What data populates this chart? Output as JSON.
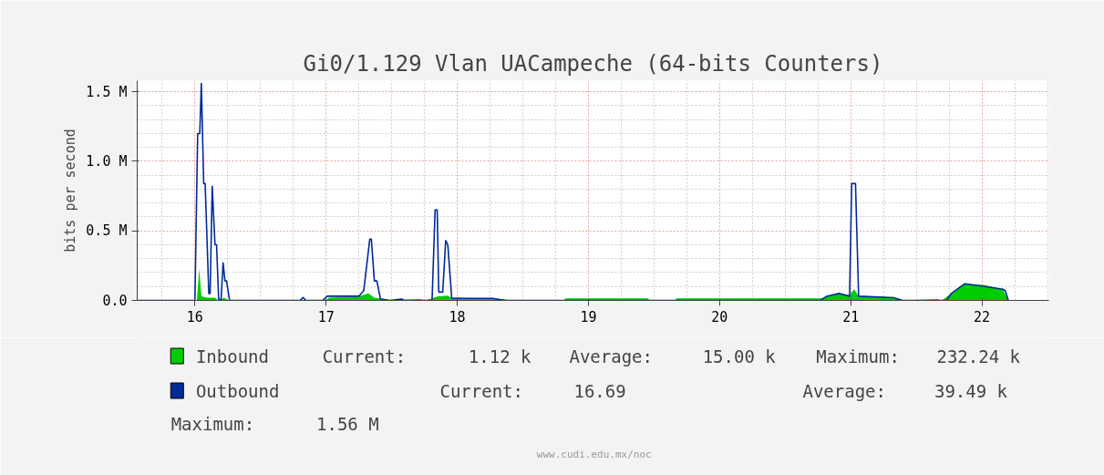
{
  "chart_data": {
    "type": "area",
    "title": "Gi0/1.129 Vlan UACampeche (64-bits Counters)",
    "ylabel": "bits per second",
    "xlim": [
      15.56,
      22.51
    ],
    "xticks": [
      16,
      17,
      18,
      19,
      20,
      21,
      22
    ],
    "ylim": [
      0,
      1.58
    ],
    "yticks": [
      {
        "value": 0,
        "label": "0.0"
      },
      {
        "value": 0.5,
        "label": "0.5 M"
      },
      {
        "value": 1.0,
        "label": "1.0 M"
      },
      {
        "value": 1.5,
        "label": "1.5 M"
      }
    ],
    "grid": true,
    "legend": "bottom",
    "series": [
      {
        "name": "Inbound",
        "color": "#00cc00",
        "x": [
          15.56,
          16.015,
          16.033,
          16.049,
          16.095,
          16.153,
          16.176,
          16.222,
          16.257,
          16.998,
          17.021,
          17.113,
          17.25,
          17.322,
          17.368,
          17.458,
          17.484,
          17.715,
          17.757,
          17.854,
          17.924,
          17.958,
          18.34,
          18.41,
          18.813,
          18.826,
          19.451,
          19.472,
          19.66,
          19.671,
          20.771,
          20.817,
          20.91,
          20.991,
          21.026,
          21.06,
          21.188,
          21.326,
          21.396,
          21.66,
          21.694,
          21.766,
          21.87,
          22.021,
          22.111,
          22.16,
          22.201
        ],
        "values": [
          0,
          0,
          0.23,
          0.03,
          0.02,
          0.02,
          0,
          0.02,
          0,
          0,
          0.02,
          0.025,
          0.03,
          0.05,
          0.02,
          0.01,
          0,
          0.01,
          0,
          0.03,
          0.035,
          0.02,
          0.01,
          0,
          0,
          0.015,
          0.015,
          0,
          0,
          0.015,
          0.015,
          0.03,
          0.05,
          0.04,
          0.08,
          0.03,
          0.03,
          0.02,
          0,
          0.01,
          0,
          0.05,
          0.12,
          0.11,
          0.09,
          0.08,
          0
        ]
      },
      {
        "name": "Outbound",
        "type": "line",
        "color": "#002a97",
        "x": [
          15.56,
          16.0,
          16.021,
          16.037,
          16.049,
          16.067,
          16.078,
          16.106,
          16.116,
          16.132,
          16.153,
          16.165,
          16.181,
          16.199,
          16.215,
          16.229,
          16.241,
          16.264,
          16.801,
          16.824,
          16.847,
          16.974,
          17.009,
          17.25,
          17.287,
          17.333,
          17.345,
          17.368,
          17.387,
          17.415,
          17.484,
          17.576,
          17.597,
          17.808,
          17.831,
          17.847,
          17.859,
          17.889,
          17.912,
          17.928,
          17.958,
          18.271,
          18.361,
          20.771,
          20.817,
          20.91,
          20.991,
          21.007,
          21.036,
          21.06,
          21.326,
          21.396,
          21.731,
          21.766,
          21.87,
          22.021,
          22.16,
          22.178,
          22.201
        ],
        "values": [
          0,
          0,
          1.2,
          1.2,
          1.56,
          0.84,
          0.84,
          0.05,
          0.05,
          0.82,
          0.4,
          0.4,
          0.01,
          0,
          0.27,
          0.14,
          0.14,
          0,
          0,
          0.02,
          0,
          0,
          0.03,
          0.03,
          0.07,
          0.44,
          0.44,
          0.14,
          0.14,
          0.01,
          0,
          0.01,
          0,
          0,
          0.65,
          0.65,
          0.06,
          0.06,
          0.43,
          0.4,
          0.015,
          0.015,
          0,
          0,
          0.03,
          0.05,
          0.03,
          0.84,
          0.84,
          0.03,
          0.02,
          0,
          0,
          0.05,
          0.12,
          0.1,
          0.08,
          0.07,
          0
        ]
      }
    ],
    "annotations": [
      "Current:",
      "1.12 k",
      "Average:",
      "15.00 k",
      "Maximum:",
      "232.24 k",
      "Current:",
      "16.69",
      "Average:",
      "39.49 k",
      "Maximum:",
      "1.56 M",
      "www.cudi.edu.mx/noc"
    ]
  }
}
